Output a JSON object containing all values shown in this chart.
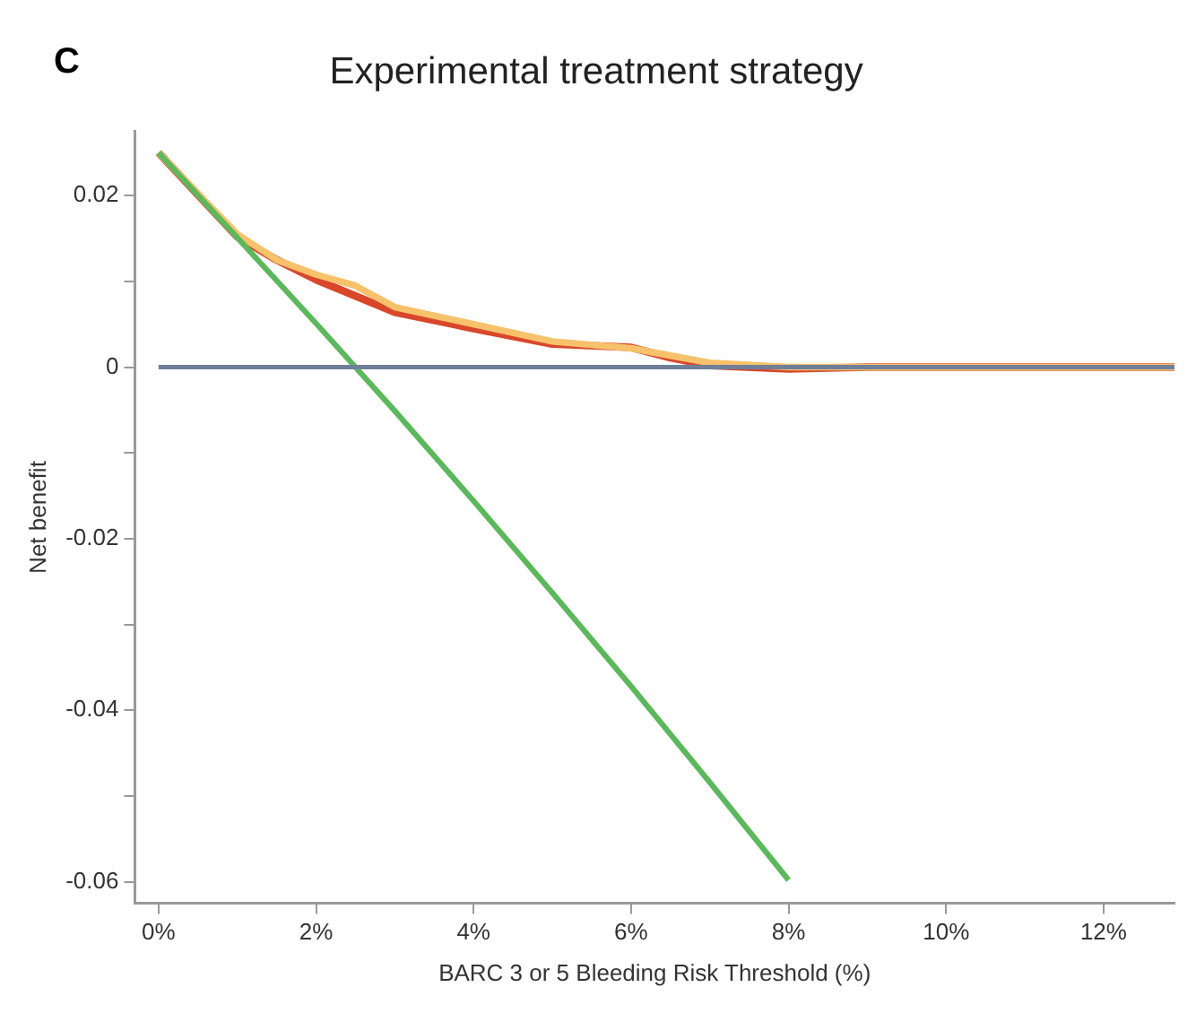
{
  "chart_data": {
    "type": "line",
    "title": "Experimental treatment strategy",
    "xlabel": "BARC 3 or 5 Bleeding Risk Threshold (%)",
    "ylabel": "Net benefit",
    "annotations": [
      "C"
    ],
    "xlim": [
      -0.3,
      12.9
    ],
    "ylim": [
      -0.0625,
      0.0275
    ],
    "xticks": [
      {
        "value": 0,
        "label": "0%"
      },
      {
        "value": 2,
        "label": "2%"
      },
      {
        "value": 4,
        "label": "4%"
      },
      {
        "value": 6,
        "label": "6%"
      },
      {
        "value": 8,
        "label": "8%"
      },
      {
        "value": 10,
        "label": "10%"
      },
      {
        "value": 12,
        "label": "12%"
      }
    ],
    "yticks": [
      {
        "value": -0.06,
        "label": "-0.06"
      },
      {
        "value": -0.05,
        "label": null
      },
      {
        "value": -0.04,
        "label": "-0.04"
      },
      {
        "value": -0.03,
        "label": null
      },
      {
        "value": -0.02,
        "label": "-0.02"
      },
      {
        "value": -0.01,
        "label": null
      },
      {
        "value": 0,
        "label": "0"
      },
      {
        "value": 0.01,
        "label": null
      },
      {
        "value": 0.02,
        "label": "0.02"
      }
    ],
    "grid": false,
    "legend": false,
    "marker": "none",
    "line_style": "solid",
    "series": [
      {
        "color": "#6f7f99",
        "x": [
          0,
          12.9
        ],
        "values": [
          0,
          0
        ]
      },
      {
        "color": "#5cb85c",
        "x": [
          0,
          1,
          2,
          3,
          4,
          5,
          6,
          7,
          8
        ],
        "values": [
          0.025,
          0.0151,
          0.0051,
          -0.0051,
          -0.0156,
          -0.0263,
          -0.0372,
          -0.0484,
          -0.0598
        ]
      },
      {
        "color": "#f7c26b",
        "x": [
          0,
          1,
          1.5,
          2,
          2.5,
          3,
          4,
          5,
          6,
          7,
          8,
          9,
          10,
          12.9
        ],
        "values": [
          0.025,
          0.0155,
          0.0125,
          0.0108,
          0.0095,
          0.007,
          0.005,
          0.003,
          0.0022,
          0.0005,
          0,
          0,
          0,
          0
        ]
      },
      {
        "color": "#d9472b",
        "x": [
          0,
          1,
          1.5,
          2,
          3,
          4,
          5,
          6,
          6.5,
          7,
          8,
          9,
          10,
          12.9
        ],
        "values": [
          0.025,
          0.0152,
          0.0125,
          0.0102,
          0.0064,
          0.0045,
          0.0027,
          0.0023,
          0.0011,
          0.0002,
          -0.0002,
          0,
          0,
          0
        ]
      }
    ]
  }
}
